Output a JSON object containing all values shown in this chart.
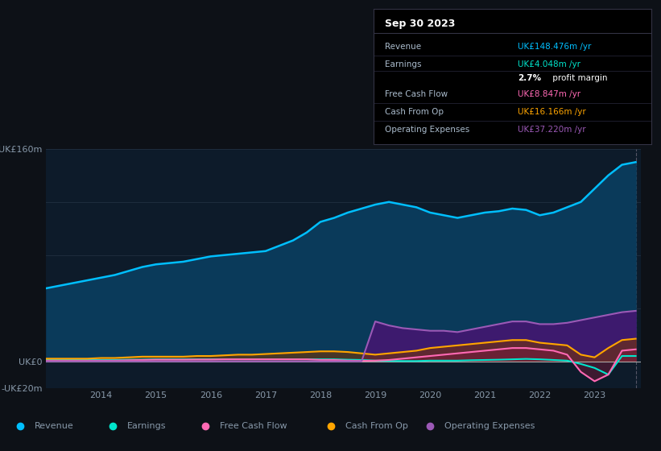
{
  "background_color": "#0d1117",
  "plot_bg_color": "#0d1b2a",
  "grid_color": "#1e2d3d",
  "text_color": "#8899aa",
  "title_color": "#ffffff",
  "years": [
    2013.0,
    2013.25,
    2013.5,
    2013.75,
    2014.0,
    2014.25,
    2014.5,
    2014.75,
    2015.0,
    2015.25,
    2015.5,
    2015.75,
    2016.0,
    2016.25,
    2016.5,
    2016.75,
    2017.0,
    2017.25,
    2017.5,
    2017.75,
    2018.0,
    2018.25,
    2018.5,
    2018.75,
    2019.0,
    2019.25,
    2019.5,
    2019.75,
    2020.0,
    2020.25,
    2020.5,
    2020.75,
    2021.0,
    2021.25,
    2021.5,
    2021.75,
    2022.0,
    2022.25,
    2022.5,
    2022.75,
    2023.0,
    2023.25,
    2023.5,
    2023.75
  ],
  "revenue": [
    55,
    57,
    59,
    61,
    63,
    65,
    68,
    71,
    73,
    74,
    75,
    77,
    79,
    80,
    81,
    82,
    83,
    87,
    91,
    97,
    105,
    108,
    112,
    115,
    118,
    120,
    118,
    116,
    112,
    110,
    108,
    110,
    112,
    113,
    115,
    114,
    110,
    112,
    116,
    120,
    130,
    140,
    148,
    150
  ],
  "earnings": [
    1,
    1,
    1,
    1,
    1,
    1,
    1.2,
    1.3,
    1.5,
    1.5,
    1.5,
    1.5,
    1.5,
    1.5,
    1.5,
    1.5,
    1.5,
    1.5,
    1.5,
    1.5,
    1.5,
    1.5,
    1.2,
    1.0,
    0.5,
    0.3,
    0.2,
    0.2,
    0.5,
    0.5,
    0.5,
    0.8,
    1.0,
    1.2,
    1.5,
    1.8,
    1.5,
    1.0,
    0.5,
    -2,
    -5,
    -10,
    4,
    4
  ],
  "free_cash_flow": [
    0.5,
    0.5,
    0.5,
    0.5,
    0.5,
    0.5,
    0.8,
    1.0,
    1.2,
    1.2,
    1.2,
    1.3,
    1.3,
    1.5,
    1.5,
    1.5,
    1.5,
    1.5,
    1.5,
    1.5,
    1.0,
    1.0,
    0.5,
    0.3,
    0.5,
    1.0,
    2.0,
    3.0,
    4.0,
    5.0,
    6.0,
    7.0,
    8.0,
    9.0,
    10.0,
    10.0,
    9.0,
    8.0,
    5.0,
    -8,
    -15,
    -10,
    8,
    9
  ],
  "cash_from_op": [
    2,
    2,
    2,
    2,
    2.5,
    2.5,
    3.0,
    3.5,
    3.5,
    3.5,
    3.5,
    4.0,
    4.0,
    4.5,
    5.0,
    5.0,
    5.5,
    6.0,
    6.5,
    7.0,
    7.5,
    7.5,
    7.0,
    6.0,
    5.0,
    6.0,
    7.0,
    8.0,
    10.0,
    11.0,
    12.0,
    13.0,
    14.0,
    15.0,
    16.0,
    16.0,
    14.0,
    13.0,
    12.0,
    5.0,
    3.0,
    10.0,
    16,
    17
  ],
  "operating_expenses": [
    0,
    0,
    0,
    0,
    0,
    0,
    0,
    0,
    0,
    0,
    0,
    0,
    0,
    0,
    0,
    0,
    0,
    0,
    0,
    0,
    0,
    0,
    0,
    0,
    30,
    27,
    25,
    24,
    23,
    23,
    22,
    24,
    26,
    28,
    30,
    30,
    28,
    28,
    29,
    31,
    33,
    35,
    37,
    38
  ],
  "revenue_color": "#00bfff",
  "revenue_fill": "#0a3a5a",
  "earnings_color": "#00e5cc",
  "free_cash_flow_color": "#ff69b4",
  "cash_from_op_color": "#ffa500",
  "operating_expenses_color": "#9b59b6",
  "operating_expenses_fill": "#3d1a6e",
  "ylim": [
    -20,
    160
  ],
  "ytick_labels": [
    "-UK£20m",
    "UK£0",
    "UK£160m"
  ],
  "xlabel_years": [
    2014,
    2015,
    2016,
    2017,
    2018,
    2019,
    2020,
    2021,
    2022,
    2023
  ],
  "tooltip_title": "Sep 30 2023",
  "tooltip_items": [
    {
      "label": "Revenue",
      "value": "UK£148.476m /yr",
      "color": "#00bfff"
    },
    {
      "label": "Earnings",
      "value": "UK£4.048m /yr",
      "color": "#00e5cc"
    },
    {
      "label": "",
      "value": "2.7% profit margin",
      "color": "#ffffff"
    },
    {
      "label": "Free Cash Flow",
      "value": "UK£8.847m /yr",
      "color": "#ff69b4"
    },
    {
      "label": "Cash From Op",
      "value": "UK£16.166m /yr",
      "color": "#ffa500"
    },
    {
      "label": "Operating Expenses",
      "value": "UK£37.220m /yr",
      "color": "#9b59b6"
    }
  ],
  "legend_items": [
    {
      "label": "Revenue",
      "color": "#00bfff"
    },
    {
      "label": "Earnings",
      "color": "#00e5cc"
    },
    {
      "label": "Free Cash Flow",
      "color": "#ff69b4"
    },
    {
      "label": "Cash From Op",
      "color": "#ffa500"
    },
    {
      "label": "Operating Expenses",
      "color": "#9b59b6"
    }
  ]
}
